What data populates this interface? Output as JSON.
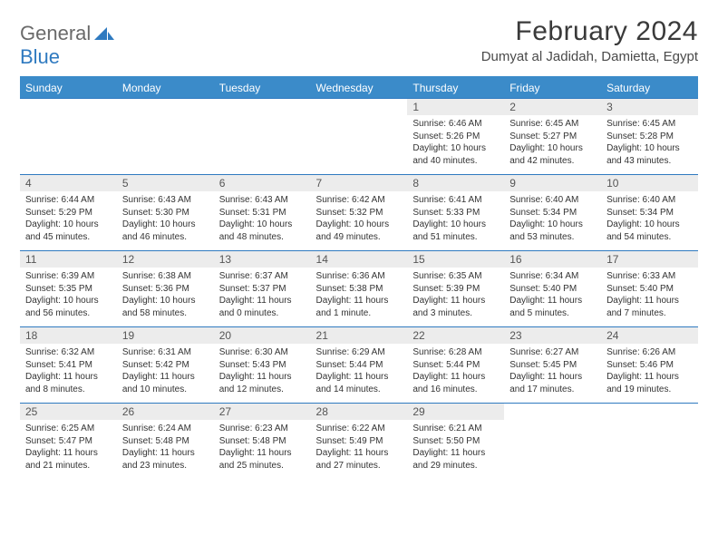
{
  "logo": {
    "word1": "General",
    "word2": "Blue"
  },
  "title": "February 2024",
  "location": "Dumyat al Jadidah, Damietta, Egypt",
  "colors": {
    "header_bg": "#3b8bc9",
    "header_text": "#ffffff",
    "daynum_bg": "#ececec",
    "rule": "#2f7ac0",
    "logo_gray": "#6a6a6a",
    "logo_blue": "#2f7ac0"
  },
  "dayHeaders": [
    "Sunday",
    "Monday",
    "Tuesday",
    "Wednesday",
    "Thursday",
    "Friday",
    "Saturday"
  ],
  "weeks": [
    [
      {
        "empty": true
      },
      {
        "empty": true
      },
      {
        "empty": true
      },
      {
        "empty": true
      },
      {
        "day": "1",
        "sunrise": "Sunrise: 6:46 AM",
        "sunset": "Sunset: 5:26 PM",
        "dl1": "Daylight: 10 hours",
        "dl2": "and 40 minutes."
      },
      {
        "day": "2",
        "sunrise": "Sunrise: 6:45 AM",
        "sunset": "Sunset: 5:27 PM",
        "dl1": "Daylight: 10 hours",
        "dl2": "and 42 minutes."
      },
      {
        "day": "3",
        "sunrise": "Sunrise: 6:45 AM",
        "sunset": "Sunset: 5:28 PM",
        "dl1": "Daylight: 10 hours",
        "dl2": "and 43 minutes."
      }
    ],
    [
      {
        "day": "4",
        "sunrise": "Sunrise: 6:44 AM",
        "sunset": "Sunset: 5:29 PM",
        "dl1": "Daylight: 10 hours",
        "dl2": "and 45 minutes."
      },
      {
        "day": "5",
        "sunrise": "Sunrise: 6:43 AM",
        "sunset": "Sunset: 5:30 PM",
        "dl1": "Daylight: 10 hours",
        "dl2": "and 46 minutes."
      },
      {
        "day": "6",
        "sunrise": "Sunrise: 6:43 AM",
        "sunset": "Sunset: 5:31 PM",
        "dl1": "Daylight: 10 hours",
        "dl2": "and 48 minutes."
      },
      {
        "day": "7",
        "sunrise": "Sunrise: 6:42 AM",
        "sunset": "Sunset: 5:32 PM",
        "dl1": "Daylight: 10 hours",
        "dl2": "and 49 minutes."
      },
      {
        "day": "8",
        "sunrise": "Sunrise: 6:41 AM",
        "sunset": "Sunset: 5:33 PM",
        "dl1": "Daylight: 10 hours",
        "dl2": "and 51 minutes."
      },
      {
        "day": "9",
        "sunrise": "Sunrise: 6:40 AM",
        "sunset": "Sunset: 5:34 PM",
        "dl1": "Daylight: 10 hours",
        "dl2": "and 53 minutes."
      },
      {
        "day": "10",
        "sunrise": "Sunrise: 6:40 AM",
        "sunset": "Sunset: 5:34 PM",
        "dl1": "Daylight: 10 hours",
        "dl2": "and 54 minutes."
      }
    ],
    [
      {
        "day": "11",
        "sunrise": "Sunrise: 6:39 AM",
        "sunset": "Sunset: 5:35 PM",
        "dl1": "Daylight: 10 hours",
        "dl2": "and 56 minutes."
      },
      {
        "day": "12",
        "sunrise": "Sunrise: 6:38 AM",
        "sunset": "Sunset: 5:36 PM",
        "dl1": "Daylight: 10 hours",
        "dl2": "and 58 minutes."
      },
      {
        "day": "13",
        "sunrise": "Sunrise: 6:37 AM",
        "sunset": "Sunset: 5:37 PM",
        "dl1": "Daylight: 11 hours",
        "dl2": "and 0 minutes."
      },
      {
        "day": "14",
        "sunrise": "Sunrise: 6:36 AM",
        "sunset": "Sunset: 5:38 PM",
        "dl1": "Daylight: 11 hours",
        "dl2": "and 1 minute."
      },
      {
        "day": "15",
        "sunrise": "Sunrise: 6:35 AM",
        "sunset": "Sunset: 5:39 PM",
        "dl1": "Daylight: 11 hours",
        "dl2": "and 3 minutes."
      },
      {
        "day": "16",
        "sunrise": "Sunrise: 6:34 AM",
        "sunset": "Sunset: 5:40 PM",
        "dl1": "Daylight: 11 hours",
        "dl2": "and 5 minutes."
      },
      {
        "day": "17",
        "sunrise": "Sunrise: 6:33 AM",
        "sunset": "Sunset: 5:40 PM",
        "dl1": "Daylight: 11 hours",
        "dl2": "and 7 minutes."
      }
    ],
    [
      {
        "day": "18",
        "sunrise": "Sunrise: 6:32 AM",
        "sunset": "Sunset: 5:41 PM",
        "dl1": "Daylight: 11 hours",
        "dl2": "and 8 minutes."
      },
      {
        "day": "19",
        "sunrise": "Sunrise: 6:31 AM",
        "sunset": "Sunset: 5:42 PM",
        "dl1": "Daylight: 11 hours",
        "dl2": "and 10 minutes."
      },
      {
        "day": "20",
        "sunrise": "Sunrise: 6:30 AM",
        "sunset": "Sunset: 5:43 PM",
        "dl1": "Daylight: 11 hours",
        "dl2": "and 12 minutes."
      },
      {
        "day": "21",
        "sunrise": "Sunrise: 6:29 AM",
        "sunset": "Sunset: 5:44 PM",
        "dl1": "Daylight: 11 hours",
        "dl2": "and 14 minutes."
      },
      {
        "day": "22",
        "sunrise": "Sunrise: 6:28 AM",
        "sunset": "Sunset: 5:44 PM",
        "dl1": "Daylight: 11 hours",
        "dl2": "and 16 minutes."
      },
      {
        "day": "23",
        "sunrise": "Sunrise: 6:27 AM",
        "sunset": "Sunset: 5:45 PM",
        "dl1": "Daylight: 11 hours",
        "dl2": "and 17 minutes."
      },
      {
        "day": "24",
        "sunrise": "Sunrise: 6:26 AM",
        "sunset": "Sunset: 5:46 PM",
        "dl1": "Daylight: 11 hours",
        "dl2": "and 19 minutes."
      }
    ],
    [
      {
        "day": "25",
        "sunrise": "Sunrise: 6:25 AM",
        "sunset": "Sunset: 5:47 PM",
        "dl1": "Daylight: 11 hours",
        "dl2": "and 21 minutes."
      },
      {
        "day": "26",
        "sunrise": "Sunrise: 6:24 AM",
        "sunset": "Sunset: 5:48 PM",
        "dl1": "Daylight: 11 hours",
        "dl2": "and 23 minutes."
      },
      {
        "day": "27",
        "sunrise": "Sunrise: 6:23 AM",
        "sunset": "Sunset: 5:48 PM",
        "dl1": "Daylight: 11 hours",
        "dl2": "and 25 minutes."
      },
      {
        "day": "28",
        "sunrise": "Sunrise: 6:22 AM",
        "sunset": "Sunset: 5:49 PM",
        "dl1": "Daylight: 11 hours",
        "dl2": "and 27 minutes."
      },
      {
        "day": "29",
        "sunrise": "Sunrise: 6:21 AM",
        "sunset": "Sunset: 5:50 PM",
        "dl1": "Daylight: 11 hours",
        "dl2": "and 29 minutes."
      },
      {
        "empty": true
      },
      {
        "empty": true
      }
    ]
  ]
}
